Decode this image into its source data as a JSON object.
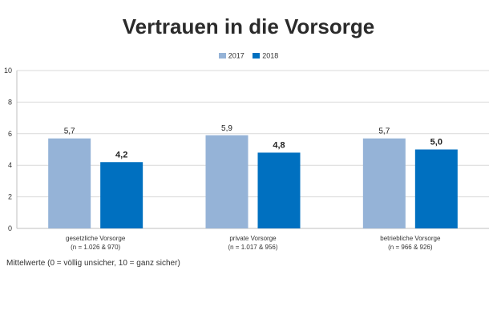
{
  "chart_data": {
    "type": "bar",
    "title": "Vertrauen in die Vorsorge",
    "categories": [
      [
        "gesetzliche Vorsorge",
        "(n = 1.026 & 970)"
      ],
      [
        "private Vorsorge",
        "(n = 1.017 & 956)"
      ],
      [
        "betriebliche Vorsorge",
        "(n = 966 & 926)"
      ]
    ],
    "series": [
      {
        "name": "2017",
        "values": [
          5.7,
          5.9,
          5.7
        ],
        "labels": [
          "5,7",
          "5,9",
          "5,7"
        ],
        "color": "#95b3d7"
      },
      {
        "name": "2018",
        "values": [
          4.2,
          4.8,
          5.0
        ],
        "labels": [
          "4,2",
          "4,8",
          "5,0"
        ],
        "color": "#0070c0"
      }
    ],
    "ylim": [
      0,
      10
    ],
    "yticks": [
      0,
      2,
      4,
      6,
      8,
      10
    ],
    "grid": true,
    "legend": "top-center",
    "footnote": "Mittelwerte (0 = völlig unsicher, 10 = ganz sicher)"
  }
}
